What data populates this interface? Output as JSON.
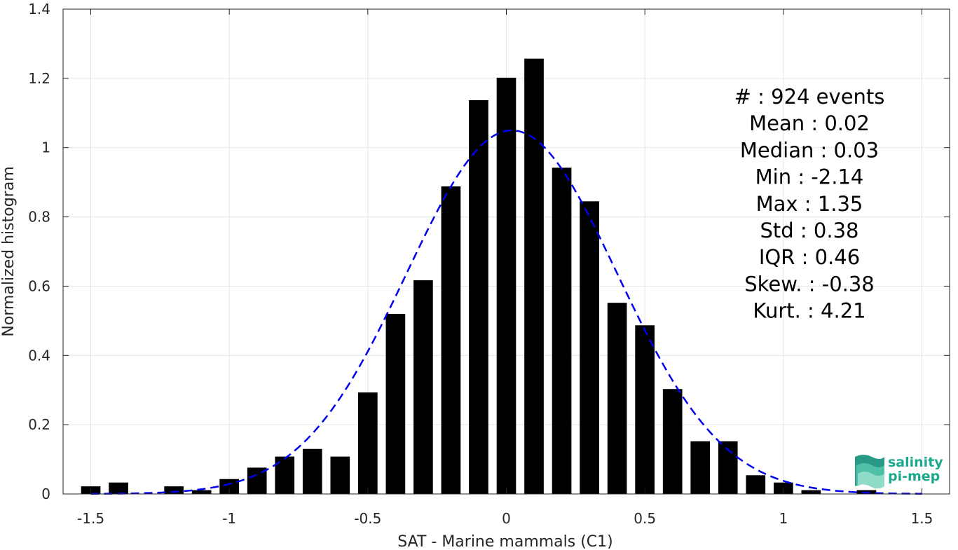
{
  "chart_data": {
    "type": "bar",
    "title": "",
    "xlabel": "SAT - Marine mammals (C1)",
    "ylabel": "Normalized histogram",
    "xlim": [
      -1.6,
      1.6
    ],
    "ylim": [
      0,
      1.4
    ],
    "grid": true,
    "x_ticks": [
      "-1.5",
      "-1",
      "-0.5",
      "0",
      "0.5",
      "1",
      "1.5"
    ],
    "x_tick_values": [
      -1.5,
      -1,
      -0.5,
      0,
      0.5,
      1,
      1.5
    ],
    "y_ticks": [
      "0",
      "0.2",
      "0.4",
      "0.6",
      "0.8",
      "1",
      "1.2",
      "1.4"
    ],
    "y_tick_values": [
      0,
      0.2,
      0.4,
      0.6,
      0.8,
      1,
      1.2,
      1.4
    ],
    "bin_width": 0.1,
    "bars": {
      "x": [
        -1.5,
        -1.4,
        -1.2,
        -1.1,
        -1.0,
        -0.9,
        -0.8,
        -0.7,
        -0.6,
        -0.5,
        -0.4,
        -0.3,
        -0.2,
        -0.1,
        0.0,
        0.1,
        0.2,
        0.3,
        0.4,
        0.5,
        0.6,
        0.7,
        0.8,
        0.9,
        1.0,
        1.1,
        1.3
      ],
      "values": [
        0.022,
        0.033,
        0.022,
        0.011,
        0.043,
        0.076,
        0.108,
        0.13,
        0.108,
        0.293,
        0.52,
        0.617,
        0.888,
        1.137,
        1.202,
        1.257,
        0.942,
        0.845,
        0.552,
        0.487,
        0.303,
        0.152,
        0.152,
        0.054,
        0.033,
        0.011,
        0.011
      ],
      "color": "#000000"
    },
    "fit_curve": {
      "style": "dashed",
      "color": "#0000ee",
      "mean": 0.02,
      "std": 0.38,
      "x_range": [
        -1.5,
        1.5
      ]
    },
    "stats": [
      {
        "label": "#  : 924 events"
      },
      {
        "label": "Mean : 0.02"
      },
      {
        "label": "Median : 0.03"
      },
      {
        "label": "Min : -2.14"
      },
      {
        "label": "Max : 1.35"
      },
      {
        "label": "Std : 0.38"
      },
      {
        "label": "IQR : 0.46"
      },
      {
        "label": "Skew. : -0.38"
      },
      {
        "label": "Kurt. : 4.21"
      }
    ]
  },
  "logo": {
    "line1": "salinity",
    "line2": "pi-mep",
    "color": "#1ea88e",
    "icon": "wave-stack-icon"
  }
}
